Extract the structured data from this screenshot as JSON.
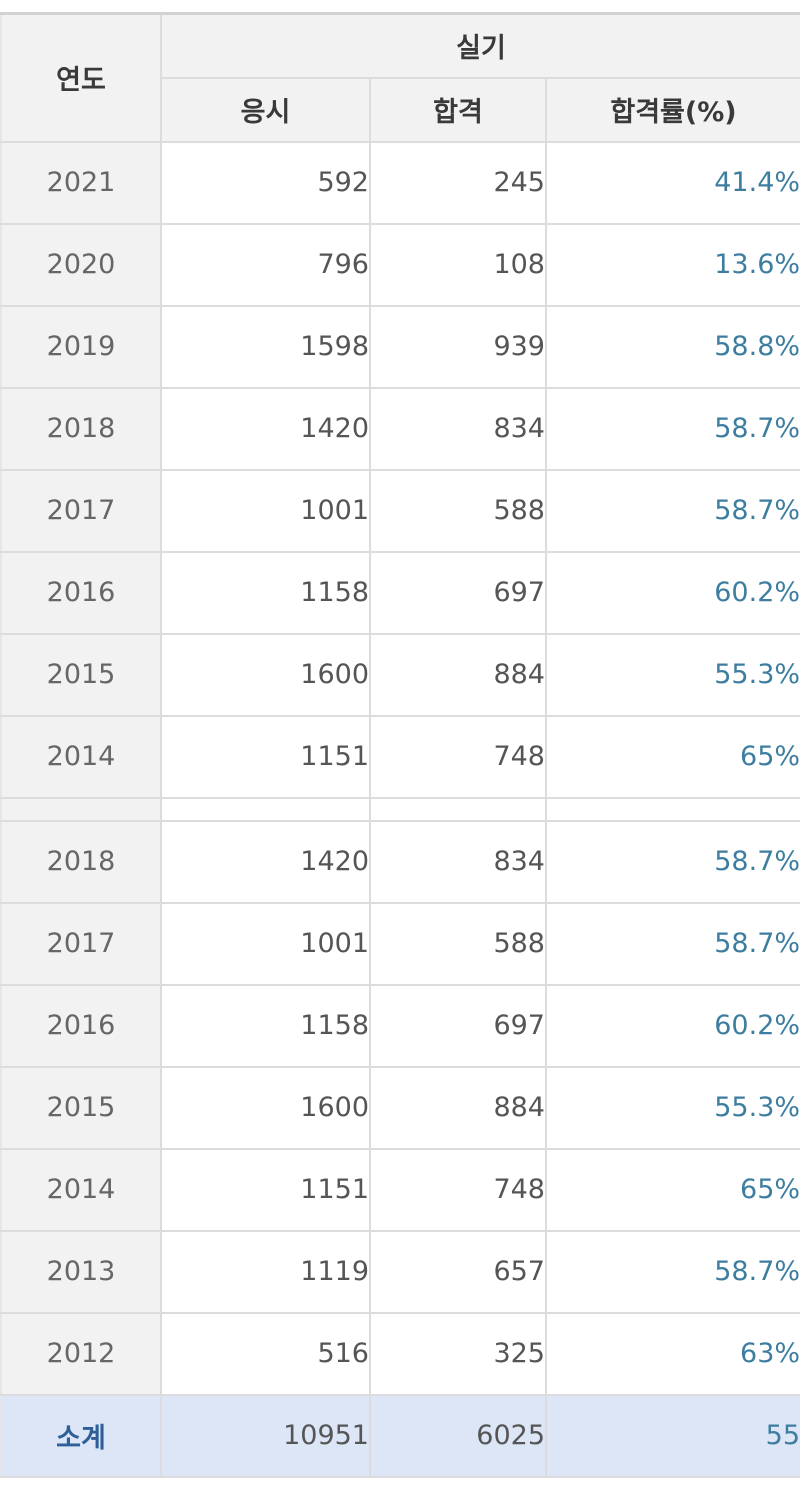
{
  "header": {
    "year_label": "연도",
    "group_label": "실기",
    "col_apply": "응시",
    "col_pass": "합격",
    "col_rate": "합격률(%)"
  },
  "rows_top": [
    {
      "year": "2021",
      "apply": "592",
      "pass": "245",
      "rate": "41.4%"
    },
    {
      "year": "2020",
      "apply": "796",
      "pass": "108",
      "rate": "13.6%"
    },
    {
      "year": "2019",
      "apply": "1598",
      "pass": "939",
      "rate": "58.8%"
    },
    {
      "year": "2018",
      "apply": "1420",
      "pass": "834",
      "rate": "58.7%"
    },
    {
      "year": "2017",
      "apply": "1001",
      "pass": "588",
      "rate": "58.7%"
    },
    {
      "year": "2016",
      "apply": "1158",
      "pass": "697",
      "rate": "60.2%"
    },
    {
      "year": "2015",
      "apply": "1600",
      "pass": "884",
      "rate": "55.3%"
    },
    {
      "year": "2014",
      "apply": "1151",
      "pass": "748",
      "rate": "65%"
    }
  ],
  "rows_bottom": [
    {
      "year": "2018",
      "apply": "1420",
      "pass": "834",
      "rate": "58.7%"
    },
    {
      "year": "2017",
      "apply": "1001",
      "pass": "588",
      "rate": "58.7%"
    },
    {
      "year": "2016",
      "apply": "1158",
      "pass": "697",
      "rate": "60.2%"
    },
    {
      "year": "2015",
      "apply": "1600",
      "pass": "884",
      "rate": "55.3%"
    },
    {
      "year": "2014",
      "apply": "1151",
      "pass": "748",
      "rate": "65%"
    },
    {
      "year": "2013",
      "apply": "1119",
      "pass": "657",
      "rate": "58.7%"
    },
    {
      "year": "2012",
      "apply": "516",
      "pass": "325",
      "rate": "63%"
    }
  ],
  "total": {
    "label": "소계",
    "apply": "10951",
    "pass": "6025",
    "rate": "55"
  },
  "colors": {
    "rate_text": "#3d7ea0",
    "total_bg": "#dce6f7",
    "header_bg": "#f2f2f2",
    "total_label": "#2f5f99"
  }
}
